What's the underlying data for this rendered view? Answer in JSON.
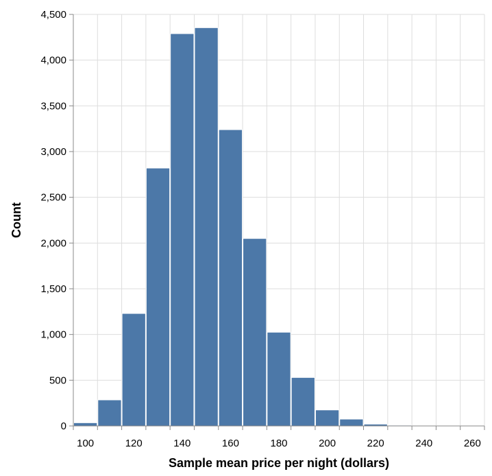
{
  "chart_data": {
    "type": "bar",
    "title": "",
    "xlabel": "Sample mean price per night (dollars)",
    "ylabel": "Count",
    "bin_start": [
      95,
      105,
      115,
      125,
      135,
      145,
      155,
      165,
      175,
      185,
      195,
      205,
      215,
      225,
      235,
      245,
      255
    ],
    "bin_end": [
      105,
      115,
      125,
      135,
      145,
      155,
      165,
      175,
      185,
      195,
      205,
      215,
      225,
      235,
      245,
      255,
      265
    ],
    "values": [
      35,
      285,
      1230,
      2820,
      4290,
      4355,
      3240,
      2050,
      1025,
      530,
      175,
      75,
      20,
      8,
      4,
      2,
      1
    ],
    "xlim": [
      95,
      265
    ],
    "ylim": [
      0,
      4500
    ],
    "x_ticks": [
      100,
      120,
      140,
      160,
      180,
      200,
      220,
      240,
      260
    ],
    "x_tick_labels": [
      "100",
      "120",
      "140",
      "160",
      "180",
      "200",
      "220",
      "240",
      "260"
    ],
    "y_ticks": [
      0,
      500,
      1000,
      1500,
      2000,
      2500,
      3000,
      3500,
      4000,
      4500
    ],
    "y_tick_labels": [
      "0",
      "500",
      "1,000",
      "1,500",
      "2,000",
      "2,500",
      "3,000",
      "3,500",
      "4,000",
      "4,500"
    ],
    "grid": true,
    "bar_color": "#4c78a8"
  }
}
